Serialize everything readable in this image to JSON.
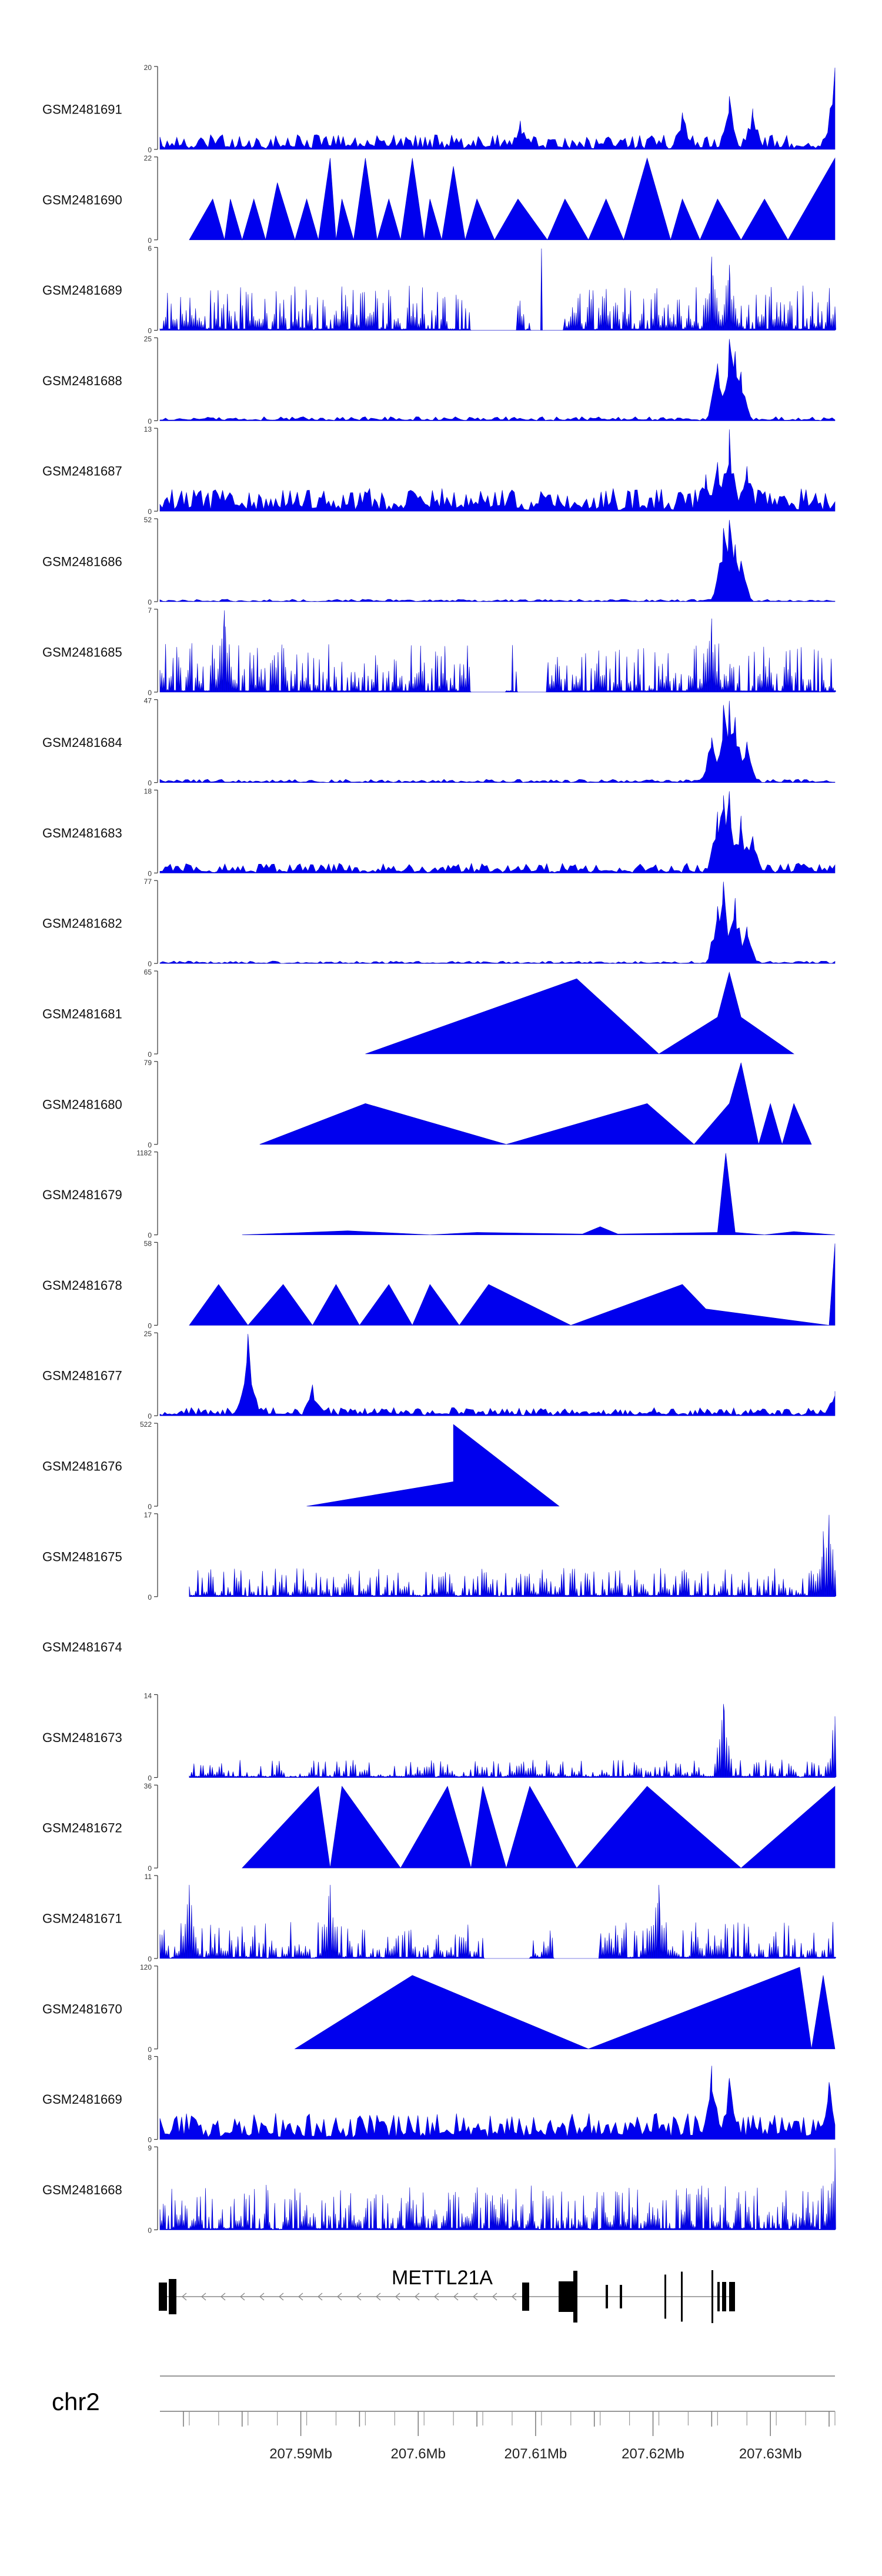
{
  "chart_data": {
    "type": "area",
    "chromosome": "chr2",
    "gene_label": "METTL21A",
    "xlim": [
      207.578,
      207.6355
    ],
    "x_ticks": [
      207.58,
      207.585,
      207.59,
      207.595,
      207.6,
      207.605,
      207.61,
      207.615,
      207.62,
      207.625,
      207.63,
      207.635
    ],
    "x_tick_labels": [
      "",
      "",
      "207.59Mb",
      "",
      "207.6Mb",
      "",
      "207.61Mb",
      "",
      "207.62Mb",
      "",
      "207.63Mb",
      ""
    ],
    "tracks": [
      {
        "name": "GSM2481691",
        "ymax": 20,
        "style": "noise",
        "density": 70,
        "noise": 0.18,
        "peaks": [
          [
            207.6087,
            0.35
          ],
          [
            207.6225,
            0.45
          ],
          [
            207.6265,
            0.65
          ],
          [
            207.6285,
            0.5
          ],
          [
            207.6355,
            1.0
          ]
        ],
        "xstart": 207.578,
        "xend": 207.6355
      },
      {
        "name": "GSM2481690",
        "ymax": 22,
        "style": "spikes",
        "points": [
          [
            207.5805,
            0
          ],
          [
            207.5825,
            0.5
          ],
          [
            207.5835,
            0
          ],
          [
            207.584,
            0.5
          ],
          [
            207.585,
            0
          ],
          [
            207.586,
            0.5
          ],
          [
            207.587,
            0
          ],
          [
            207.588,
            0.7
          ],
          [
            207.5895,
            0
          ],
          [
            207.5905,
            0.5
          ],
          [
            207.5915,
            0
          ],
          [
            207.5925,
            1.0
          ],
          [
            207.593,
            0
          ],
          [
            207.5935,
            0.5
          ],
          [
            207.5945,
            0
          ],
          [
            207.5955,
            1.0
          ],
          [
            207.5965,
            0
          ],
          [
            207.5975,
            0.5
          ],
          [
            207.5985,
            0
          ],
          [
            207.5995,
            1.0
          ],
          [
            207.6005,
            0
          ],
          [
            207.601,
            0.5
          ],
          [
            207.602,
            0
          ],
          [
            207.603,
            0.9
          ],
          [
            207.604,
            0
          ],
          [
            207.605,
            0.5
          ],
          [
            207.6065,
            0
          ],
          [
            207.6085,
            0.5
          ],
          [
            207.611,
            0
          ],
          [
            207.6125,
            0.5
          ],
          [
            207.6145,
            0
          ],
          [
            207.616,
            0.5
          ],
          [
            207.6175,
            0
          ],
          [
            207.6195,
            1.0
          ],
          [
            207.6215,
            0
          ],
          [
            207.6225,
            0.5
          ],
          [
            207.624,
            0
          ],
          [
            207.6255,
            0.5
          ],
          [
            207.6275,
            0
          ],
          [
            207.6295,
            0.5
          ],
          [
            207.6315,
            0
          ],
          [
            207.6355,
            1.0
          ]
        ]
      },
      {
        "name": "GSM2481689",
        "ymax": 6,
        "style": "spikes_noise",
        "density": 90,
        "noise": 0.55,
        "gaps": [
          [
            207.6045,
            207.6085
          ],
          [
            207.6095,
            207.6125
          ]
        ],
        "peaks": [
          [
            207.6105,
            1.0
          ],
          [
            207.625,
            0.9
          ],
          [
            207.6265,
            0.8
          ]
        ],
        "xstart": 207.578,
        "xend": 207.6355
      },
      {
        "name": "GSM2481688",
        "ymax": 25,
        "style": "noise",
        "density": 60,
        "noise": 0.05,
        "peaks": [
          [
            207.6255,
            0.7
          ],
          [
            207.6265,
            1.0
          ],
          [
            207.627,
            0.85
          ],
          [
            207.6275,
            0.6
          ]
        ],
        "xstart": 207.578,
        "xend": 207.6355
      },
      {
        "name": "GSM2481687",
        "ymax": 13,
        "style": "noise",
        "density": 70,
        "noise": 0.28,
        "peaks": [
          [
            207.6265,
            1.0
          ],
          [
            207.6255,
            0.6
          ],
          [
            207.628,
            0.55
          ],
          [
            207.6245,
            0.45
          ]
        ],
        "xstart": 207.578,
        "xend": 207.6355
      },
      {
        "name": "GSM2481686",
        "ymax": 52,
        "style": "noise",
        "density": 60,
        "noise": 0.03,
        "peaks": [
          [
            207.626,
            0.9
          ],
          [
            207.6265,
            1.0
          ],
          [
            207.627,
            0.7
          ],
          [
            207.6275,
            0.5
          ]
        ],
        "xstart": 207.578,
        "xend": 207.6355
      },
      {
        "name": "GSM2481685",
        "ymax": 7,
        "style": "spikes_noise",
        "density": 90,
        "noise": 0.6,
        "gaps": [
          [
            207.6045,
            207.6075
          ],
          [
            207.6085,
            207.611
          ]
        ],
        "peaks": [
          [
            207.5835,
            1.0
          ],
          [
            207.625,
            0.9
          ]
        ],
        "xstart": 207.578,
        "xend": 207.6355
      },
      {
        "name": "GSM2481684",
        "ymax": 47,
        "style": "noise",
        "density": 60,
        "noise": 0.04,
        "peaks": [
          [
            207.625,
            0.55
          ],
          [
            207.626,
            0.95
          ],
          [
            207.6265,
            1.0
          ],
          [
            207.627,
            0.8
          ],
          [
            207.628,
            0.5
          ]
        ],
        "xstart": 207.578,
        "xend": 207.6355
      },
      {
        "name": "GSM2481683",
        "ymax": 18,
        "style": "noise",
        "density": 65,
        "noise": 0.12,
        "peaks": [
          [
            207.6255,
            0.75
          ],
          [
            207.626,
            0.95
          ],
          [
            207.6265,
            1.0
          ],
          [
            207.6275,
            0.7
          ],
          [
            207.6285,
            0.45
          ]
        ],
        "xstart": 207.578,
        "xend": 207.6355
      },
      {
        "name": "GSM2481682",
        "ymax": 77,
        "style": "noise",
        "density": 60,
        "noise": 0.03,
        "peaks": [
          [
            207.6255,
            0.7
          ],
          [
            207.626,
            1.0
          ],
          [
            207.627,
            0.8
          ],
          [
            207.628,
            0.45
          ]
        ],
        "xstart": 207.578,
        "xend": 207.6355
      },
      {
        "name": "GSM2481681",
        "ymax": 65,
        "style": "spikes",
        "points": [
          [
            207.5955,
            0
          ],
          [
            207.6135,
            0.92
          ],
          [
            207.6205,
            0
          ],
          [
            207.6255,
            0.45
          ],
          [
            207.6265,
            1.0
          ],
          [
            207.6275,
            0.45
          ],
          [
            207.632,
            0
          ]
        ]
      },
      {
        "name": "GSM2481680",
        "ymax": 79,
        "style": "spikes",
        "points": [
          [
            207.5865,
            0
          ],
          [
            207.5955,
            0.5
          ],
          [
            207.6075,
            0
          ],
          [
            207.6195,
            0.5
          ],
          [
            207.6235,
            0
          ],
          [
            207.6265,
            0.5
          ],
          [
            207.6275,
            1.0
          ],
          [
            207.629,
            0
          ],
          [
            207.63,
            0.5
          ],
          [
            207.631,
            0
          ],
          [
            207.632,
            0.5
          ],
          [
            207.6335,
            0
          ]
        ]
      },
      {
        "name": "GSM2481679",
        "ymax": 1182,
        "style": "spikes",
        "points": [
          [
            207.585,
            0
          ],
          [
            207.594,
            0.05
          ],
          [
            207.601,
            0
          ],
          [
            207.605,
            0.03
          ],
          [
            207.614,
            0.01
          ],
          [
            207.6155,
            0.1
          ],
          [
            207.617,
            0.01
          ],
          [
            207.6255,
            0.03
          ],
          [
            207.6262,
            1.0
          ],
          [
            207.627,
            0.03
          ],
          [
            207.6295,
            0.0
          ],
          [
            207.632,
            0.04
          ],
          [
            207.6355,
            0
          ]
        ]
      },
      {
        "name": "GSM2481678",
        "ymax": 58,
        "style": "spikes",
        "points": [
          [
            207.5805,
            0
          ],
          [
            207.583,
            0.5
          ],
          [
            207.5855,
            0
          ],
          [
            207.5885,
            0.5
          ],
          [
            207.591,
            0
          ],
          [
            207.593,
            0.5
          ],
          [
            207.595,
            0
          ],
          [
            207.5975,
            0.5
          ],
          [
            207.5995,
            0
          ],
          [
            207.601,
            0.5
          ],
          [
            207.6035,
            0
          ],
          [
            207.606,
            0.5
          ],
          [
            207.613,
            0
          ],
          [
            207.6225,
            0.5
          ],
          [
            207.6245,
            0.2
          ],
          [
            207.6355,
            1.0
          ],
          [
            207.635,
            0
          ]
        ]
      },
      {
        "name": "GSM2481677",
        "ymax": 25,
        "style": "noise",
        "density": 70,
        "noise": 0.1,
        "peaks": [
          [
            207.5855,
            1.0
          ],
          [
            207.591,
            0.38
          ],
          [
            207.6355,
            0.3
          ]
        ],
        "xstart": 207.578,
        "xend": 207.6355
      },
      {
        "name": "GSM2481676",
        "ymax": 522,
        "style": "spikes",
        "points": [
          [
            207.5905,
            0
          ],
          [
            207.603,
            0.3
          ],
          [
            207.603,
            1.0
          ],
          [
            207.612,
            0
          ]
        ]
      },
      {
        "name": "GSM2481675",
        "ymax": 17,
        "style": "spikes_noise",
        "density": 75,
        "noise": 0.35,
        "gaps": [],
        "peaks": [
          [
            207.6345,
            0.8
          ],
          [
            207.635,
            1.0
          ]
        ],
        "xstart": 207.5805,
        "xend": 207.6355
      },
      {
        "name": "GSM2481674",
        "ymax": null,
        "style": "empty"
      },
      {
        "name": "GSM2481673",
        "ymax": 14,
        "style": "spikes_noise",
        "density": 70,
        "noise": 0.22,
        "gaps": [],
        "peaks": [
          [
            207.626,
            0.9
          ],
          [
            207.6355,
            0.75
          ]
        ],
        "xstart": 207.5805,
        "xend": 207.6355
      },
      {
        "name": "GSM2481672",
        "ymax": 36,
        "style": "spikes",
        "points": [
          [
            207.585,
            0
          ],
          [
            207.5915,
            1.0
          ],
          [
            207.5925,
            0
          ],
          [
            207.5935,
            1.0
          ],
          [
            207.5985,
            0
          ],
          [
            207.6025,
            1.0
          ],
          [
            207.6045,
            0
          ],
          [
            207.6055,
            1.0
          ],
          [
            207.6075,
            0
          ],
          [
            207.6095,
            1.0
          ],
          [
            207.6135,
            0
          ],
          [
            207.6195,
            1.0
          ],
          [
            207.6275,
            0
          ],
          [
            207.6355,
            1.0
          ]
        ]
      },
      {
        "name": "GSM2481671",
        "ymax": 11,
        "style": "spikes_noise",
        "density": 80,
        "noise": 0.45,
        "gaps": [
          [
            207.6055,
            207.6095
          ],
          [
            207.6115,
            207.6155
          ]
        ],
        "peaks": [
          [
            207.5805,
            0.9
          ],
          [
            207.5925,
            0.9
          ],
          [
            207.6205,
            0.9
          ]
        ],
        "xstart": 207.578,
        "xend": 207.6355
      },
      {
        "name": "GSM2481670",
        "ymax": 120,
        "style": "spikes",
        "points": [
          [
            207.5895,
            0
          ],
          [
            207.5995,
            0.9
          ],
          [
            207.6145,
            0
          ],
          [
            207.6325,
            1.0
          ],
          [
            207.6335,
            0
          ],
          [
            207.6345,
            0.9
          ],
          [
            207.6355,
            0
          ]
        ]
      },
      {
        "name": "GSM2481669",
        "ymax": 8,
        "style": "noise",
        "density": 70,
        "noise": 0.32,
        "peaks": [
          [
            207.625,
            0.9
          ],
          [
            207.6265,
            0.75
          ],
          [
            207.635,
            0.7
          ]
        ],
        "xstart": 207.578,
        "xend": 207.6355
      },
      {
        "name": "GSM2481668",
        "ymax": 9,
        "style": "spikes_noise",
        "density": 100,
        "noise": 0.55,
        "gaps": [],
        "peaks": [
          [
            207.6355,
            1.0
          ]
        ],
        "xstart": 207.578,
        "xend": 207.6355
      }
    ]
  }
}
